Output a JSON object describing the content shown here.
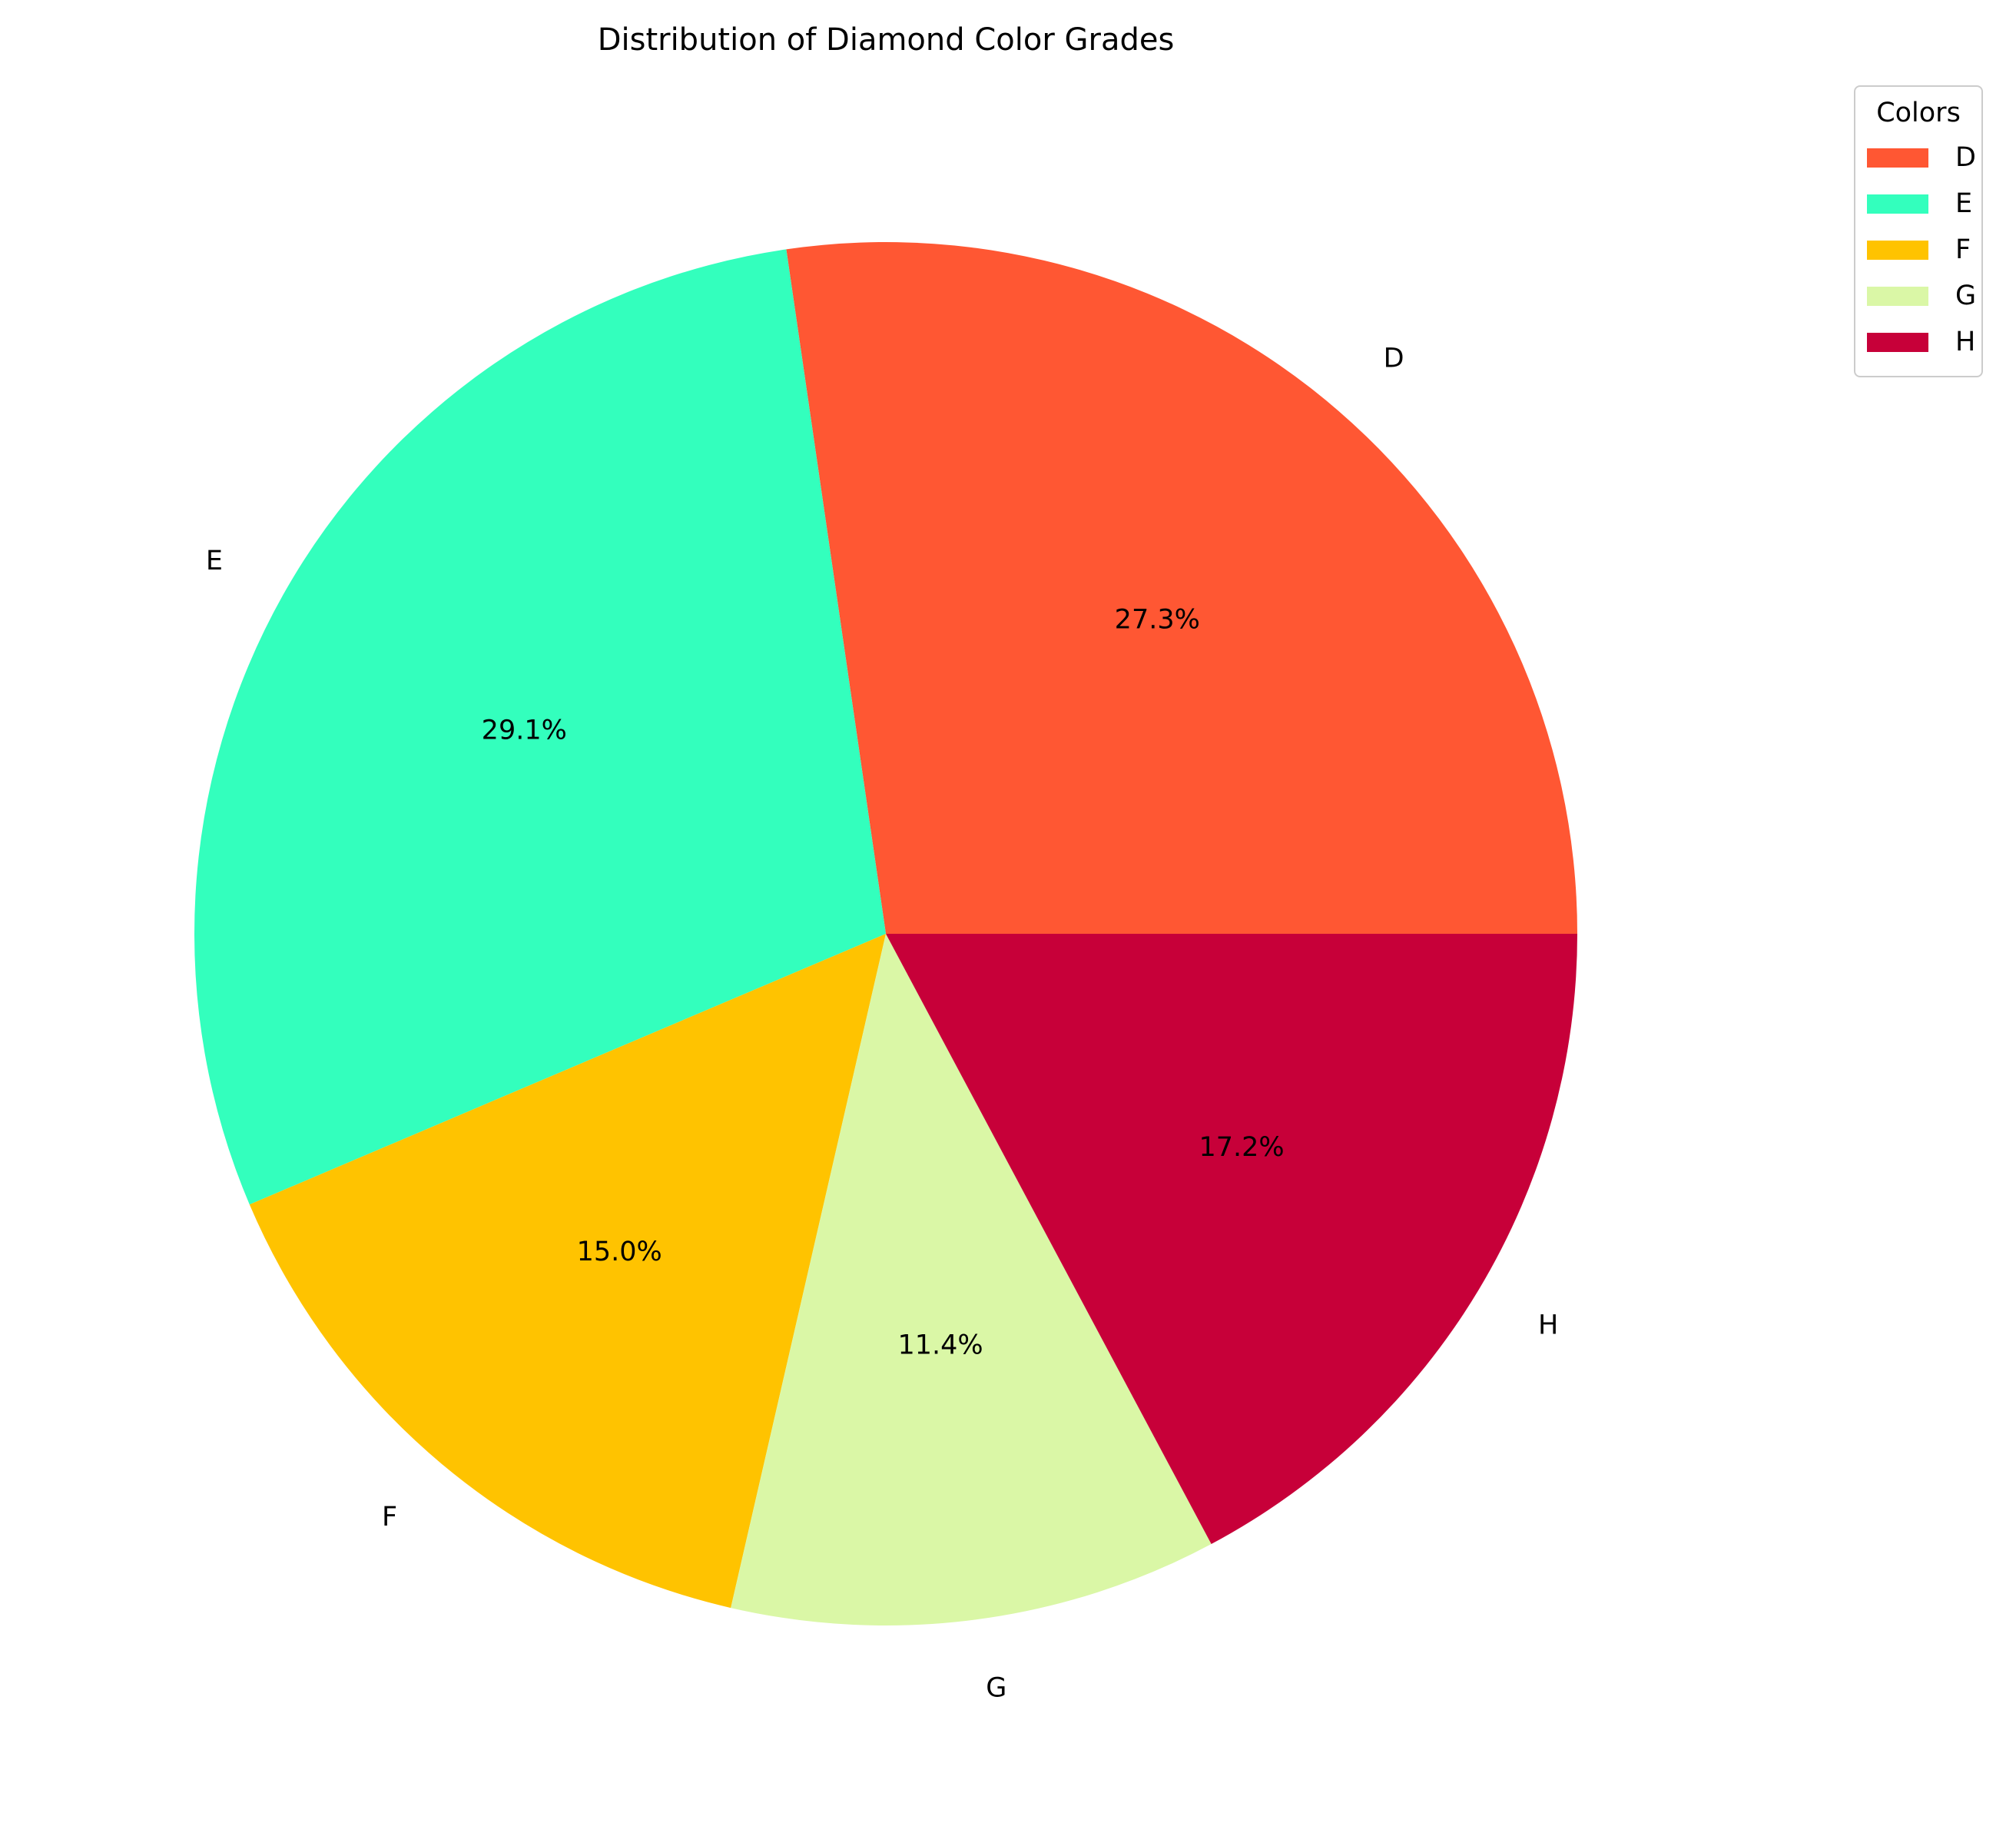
{
  "chart_data": {
    "type": "pie",
    "title": "Distribution of Diamond Color Grades",
    "categories": [
      "D",
      "E",
      "F",
      "G",
      "H"
    ],
    "values": [
      27.3,
      29.1,
      15.0,
      11.4,
      17.2
    ],
    "percent_labels": [
      "27.3%",
      "29.1%",
      "15.0%",
      "11.4%",
      "17.2%"
    ],
    "colors": [
      "#FF5733",
      "#33FFBD",
      "#FFC300",
      "#DAF7A6",
      "#C70039"
    ],
    "start_angle_deg": 0,
    "direction": "counterclockwise",
    "legend": {
      "title": "Colors",
      "placement": "upper-right",
      "entries": [
        "D",
        "E",
        "F",
        "G",
        "H"
      ]
    }
  }
}
